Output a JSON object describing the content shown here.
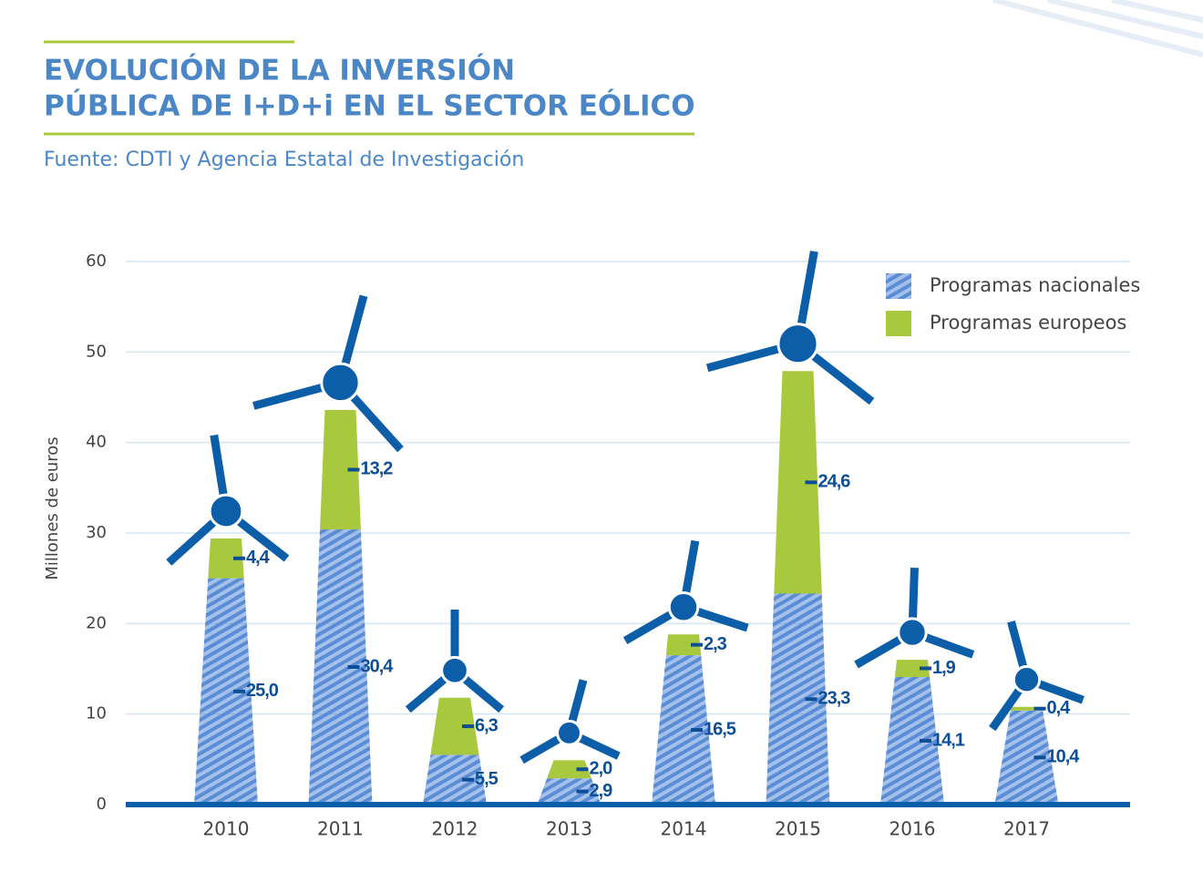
{
  "chart_data": {
    "type": "stacked-tower",
    "title": [
      "EVOLUCIÓN DE LA INVERSIÓN",
      "PÚBLICA DE I+D+i EN EL SECTOR EÓLICO"
    ],
    "subtitle": "Fuente: CDTI y Agencia Estatal de Investigación",
    "y_label": "Millones de euros",
    "categories": [
      "2010",
      "2011",
      "2012",
      "2013",
      "2014",
      "2015",
      "2016",
      "2017"
    ],
    "series": [
      {
        "name": "Programas nacionales",
        "color": "#5a8dd6",
        "values": [
          25.0,
          30.4,
          5.5,
          2.9,
          16.5,
          23.3,
          14.1,
          10.4
        ],
        "value_labels": [
          "25,0",
          "30,4",
          "5,5",
          "2,9",
          "16,5",
          "23,3",
          "14,1",
          "10,4"
        ]
      },
      {
        "name": "Programas europeos",
        "color": "#a8c83d",
        "values": [
          4.4,
          13.2,
          6.3,
          2.0,
          2.3,
          24.6,
          1.9,
          0.4
        ],
        "value_labels": [
          "4,4",
          "13,2",
          "6,3",
          "2,0",
          "2,3",
          "24,6",
          "1,9",
          "0,4"
        ]
      }
    ],
    "ylim": [
      0,
      60
    ],
    "yticks": [
      0,
      10,
      20,
      30,
      40,
      50,
      60
    ],
    "grid": true,
    "legend": "upper right"
  }
}
